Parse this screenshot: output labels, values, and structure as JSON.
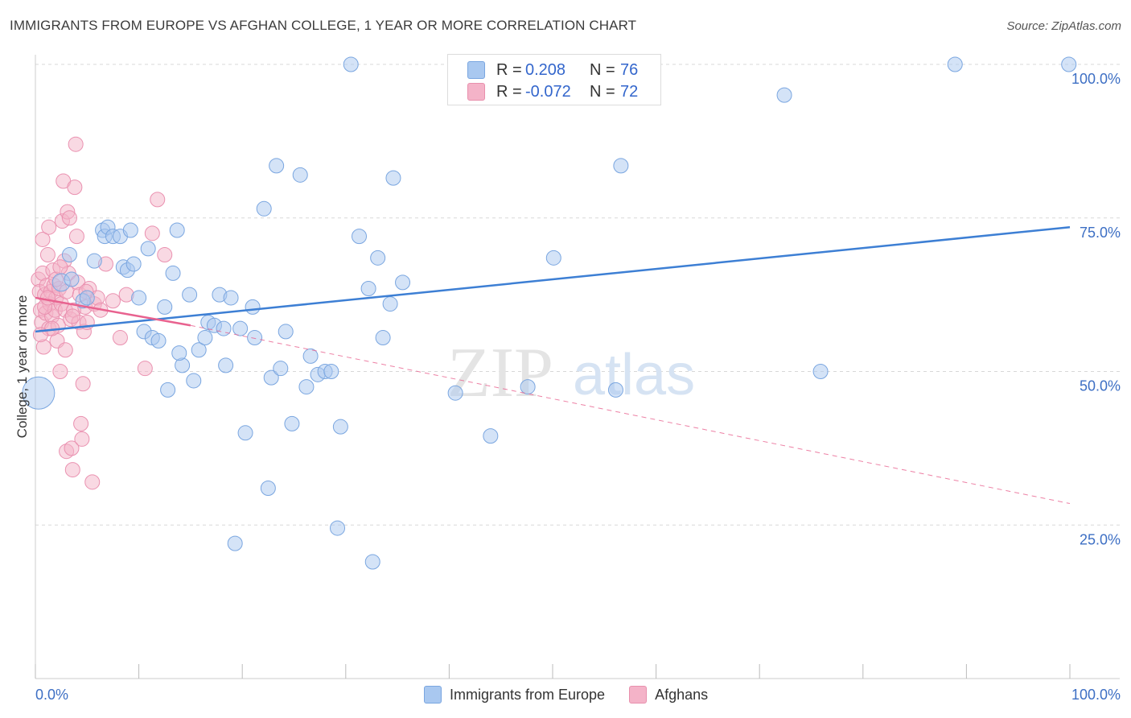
{
  "title": "IMMIGRANTS FROM EUROPE VS AFGHAN COLLEGE, 1 YEAR OR MORE CORRELATION CHART",
  "source": "Source: ZipAtlas.com",
  "watermark": {
    "zip": "ZIP",
    "atlas": "atlas"
  },
  "colors": {
    "blue": "#3d7fd4",
    "blue_fill": "#a9c8f0",
    "pink": "#e8628f",
    "pink_fill": "#f4b3c8",
    "axis_label": "#3d6fc4",
    "grid": "#d8d8d8"
  },
  "legend": {
    "rows": [
      {
        "r_label": "R =",
        "r_value": "0.208",
        "n_label": "N =",
        "n_value": "76"
      },
      {
        "r_label": "R =",
        "r_value": "-0.072",
        "n_label": "N =",
        "n_value": "72"
      }
    ]
  },
  "bottom_legend": [
    "Immigrants from Europe",
    "Afghans"
  ],
  "chart_data": {
    "type": "scatter",
    "title": "IMMIGRANTS FROM EUROPE VS AFGHAN COLLEGE, 1 YEAR OR MORE CORRELATION CHART",
    "xlabel": "",
    "ylabel": "College, 1 year or more",
    "xlim": [
      0,
      100
    ],
    "ylim": [
      0,
      100
    ],
    "x_tick_labels": [
      "0.0%",
      "100.0%"
    ],
    "y_tick_labels": [
      "25.0%",
      "50.0%",
      "75.0%",
      "100.0%"
    ],
    "y_ticks": [
      25,
      50,
      75,
      100
    ],
    "series": [
      {
        "name": "Immigrants from Europe",
        "color": "#3d7fd4",
        "trend": {
          "x": [
            0,
            100
          ],
          "y": [
            56.5,
            73.5
          ],
          "style": "solid"
        },
        "points": [
          [
            0.3,
            46.5,
            20
          ],
          [
            2.5,
            64.5,
            11
          ],
          [
            3.5,
            65.0,
            9
          ],
          [
            3.3,
            69.0,
            9
          ],
          [
            4.6,
            61.5,
            9
          ],
          [
            5.7,
            68.0,
            9
          ],
          [
            6.5,
            73.0,
            9
          ],
          [
            6.7,
            72.0,
            9
          ],
          [
            7.0,
            73.5,
            9
          ],
          [
            7.5,
            72.0,
            9
          ],
          [
            8.2,
            72.0,
            9
          ],
          [
            8.5,
            67.0,
            9
          ],
          [
            8.9,
            66.5,
            9
          ],
          [
            9.5,
            67.5,
            9
          ],
          [
            10.0,
            62.0,
            9
          ],
          [
            10.5,
            56.5,
            9
          ],
          [
            10.9,
            70.0,
            9
          ],
          [
            11.3,
            55.5,
            9
          ],
          [
            11.9,
            55.0,
            9
          ],
          [
            12.5,
            60.5,
            9
          ],
          [
            12.8,
            47.0,
            9
          ],
          [
            13.3,
            66.0,
            9
          ],
          [
            13.7,
            73.0,
            9
          ],
          [
            14.2,
            51.0,
            9
          ],
          [
            14.9,
            62.5,
            9
          ],
          [
            15.3,
            48.5,
            9
          ],
          [
            15.8,
            53.5,
            9
          ],
          [
            16.4,
            55.5,
            9
          ],
          [
            16.7,
            58.0,
            9
          ],
          [
            17.3,
            57.5,
            9
          ],
          [
            17.8,
            62.5,
            9
          ],
          [
            18.4,
            51.0,
            9
          ],
          [
            18.9,
            62.0,
            9
          ],
          [
            19.3,
            22.0,
            9
          ],
          [
            19.8,
            57.0,
            9
          ],
          [
            20.3,
            40.0,
            9
          ],
          [
            21.0,
            60.5,
            9
          ],
          [
            21.2,
            55.5,
            9
          ],
          [
            22.1,
            76.5,
            9
          ],
          [
            22.5,
            31.0,
            9
          ],
          [
            22.8,
            49.0,
            9
          ],
          [
            23.3,
            83.5,
            9
          ],
          [
            24.2,
            56.5,
            9
          ],
          [
            24.8,
            41.5,
            9
          ],
          [
            25.6,
            82.0,
            9
          ],
          [
            26.2,
            47.5,
            9
          ],
          [
            26.6,
            52.5,
            9
          ],
          [
            27.3,
            49.5,
            9
          ],
          [
            28.0,
            50.0,
            9
          ],
          [
            28.6,
            50.0,
            9
          ],
          [
            29.2,
            24.5,
            9
          ],
          [
            29.5,
            41.0,
            9
          ],
          [
            30.5,
            100.0,
            9
          ],
          [
            31.3,
            72.0,
            9
          ],
          [
            32.2,
            63.5,
            9
          ],
          [
            32.6,
            19.0,
            9
          ],
          [
            33.1,
            68.5,
            9
          ],
          [
            33.6,
            55.5,
            9
          ],
          [
            34.3,
            61.0,
            9
          ],
          [
            34.6,
            81.5,
            9
          ],
          [
            35.5,
            64.5,
            9
          ],
          [
            40.6,
            46.5,
            9
          ],
          [
            44.0,
            39.5,
            9
          ],
          [
            47.6,
            47.5,
            9
          ],
          [
            50.1,
            68.5,
            9
          ],
          [
            56.1,
            47.0,
            9
          ],
          [
            56.6,
            83.5,
            9
          ],
          [
            72.4,
            95.0,
            9
          ],
          [
            75.9,
            50.0,
            9
          ],
          [
            88.9,
            100.0,
            9
          ],
          [
            99.9,
            100.0,
            9
          ],
          [
            18.2,
            57.0,
            9
          ],
          [
            13.9,
            53.0,
            9
          ],
          [
            23.7,
            50.5,
            9
          ],
          [
            9.2,
            73.0,
            9
          ],
          [
            5.0,
            62.0,
            9
          ]
        ]
      },
      {
        "name": "Afghans",
        "color": "#e8628f",
        "trend": {
          "x": [
            0,
            15
          ],
          "y": [
            62.0,
            57.5
          ],
          "style": "solid",
          "extend_to": [
            100,
            28.5
          ],
          "extend_style": "dashed"
        },
        "points": [
          [
            0.3,
            65.0,
            9
          ],
          [
            0.4,
            63.0,
            9
          ],
          [
            0.5,
            60.0,
            9
          ],
          [
            0.6,
            58.0,
            9
          ],
          [
            0.7,
            66.0,
            9
          ],
          [
            0.7,
            71.5,
            9
          ],
          [
            0.8,
            54.0,
            9
          ],
          [
            0.9,
            62.5,
            9
          ],
          [
            1.0,
            59.5,
            9
          ],
          [
            1.1,
            64.0,
            9
          ],
          [
            1.2,
            69.0,
            9
          ],
          [
            1.3,
            57.0,
            9
          ],
          [
            1.3,
            73.5,
            9
          ],
          [
            1.4,
            61.0,
            9
          ],
          [
            1.5,
            63.0,
            9
          ],
          [
            1.6,
            59.0,
            9
          ],
          [
            1.7,
            66.5,
            9
          ],
          [
            1.8,
            64.0,
            9
          ],
          [
            1.9,
            60.0,
            9
          ],
          [
            2.0,
            62.0,
            9
          ],
          [
            2.1,
            55.0,
            9
          ],
          [
            2.2,
            57.5,
            9
          ],
          [
            2.3,
            63.5,
            9
          ],
          [
            2.4,
            50.0,
            9
          ],
          [
            2.5,
            61.0,
            9
          ],
          [
            2.6,
            74.5,
            9
          ],
          [
            2.7,
            81.0,
            9
          ],
          [
            2.8,
            68.0,
            9
          ],
          [
            2.9,
            60.0,
            9
          ],
          [
            3.0,
            63.0,
            9
          ],
          [
            3.0,
            37.0,
            9
          ],
          [
            3.1,
            76.0,
            9
          ],
          [
            3.2,
            66.0,
            9
          ],
          [
            3.3,
            75.0,
            9
          ],
          [
            3.4,
            58.5,
            9
          ],
          [
            3.5,
            37.5,
            9
          ],
          [
            3.6,
            34.0,
            9
          ],
          [
            3.7,
            60.0,
            9
          ],
          [
            3.8,
            80.0,
            9
          ],
          [
            3.9,
            87.0,
            9
          ],
          [
            4.0,
            72.0,
            9
          ],
          [
            4.1,
            64.5,
            9
          ],
          [
            4.2,
            58.0,
            9
          ],
          [
            4.3,
            62.5,
            9
          ],
          [
            4.4,
            41.5,
            9
          ],
          [
            4.5,
            39.0,
            9
          ],
          [
            4.6,
            48.0,
            9
          ],
          [
            4.7,
            56.5,
            9
          ],
          [
            4.8,
            60.5,
            9
          ],
          [
            5.0,
            58.0,
            9
          ],
          [
            5.2,
            63.5,
            9
          ],
          [
            5.5,
            32.0,
            9
          ],
          [
            5.7,
            61.0,
            9
          ],
          [
            6.0,
            62.0,
            9
          ],
          [
            6.3,
            60.0,
            9
          ],
          [
            6.8,
            67.5,
            9
          ],
          [
            7.5,
            61.5,
            9
          ],
          [
            8.2,
            55.5,
            9
          ],
          [
            8.8,
            62.5,
            9
          ],
          [
            10.6,
            50.5,
            9
          ],
          [
            11.3,
            72.5,
            9
          ],
          [
            11.8,
            78.0,
            9
          ],
          [
            12.5,
            69.0,
            9
          ],
          [
            0.9,
            60.5,
            9
          ],
          [
            1.6,
            57.0,
            9
          ],
          [
            2.0,
            65.0,
            9
          ],
          [
            2.9,
            53.5,
            9
          ],
          [
            3.6,
            59.0,
            9
          ],
          [
            4.9,
            63.0,
            9
          ],
          [
            1.2,
            62.0,
            9
          ],
          [
            0.5,
            56.0,
            9
          ],
          [
            2.4,
            67.0,
            9
          ]
        ]
      }
    ],
    "legend": [
      "Immigrants from Europe",
      "Afghans"
    ]
  }
}
